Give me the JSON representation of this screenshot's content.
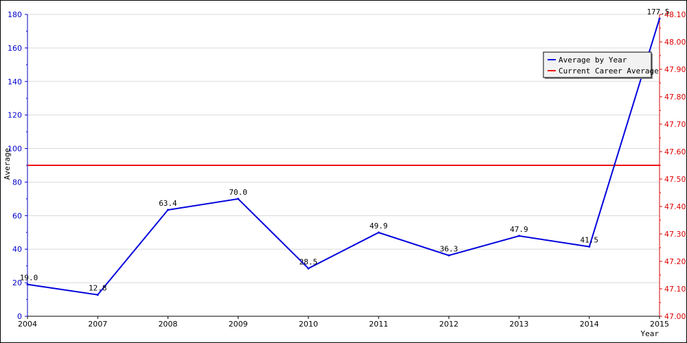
{
  "chart_data": {
    "type": "line",
    "xlabel": "Year",
    "ylabel": "Average",
    "categories": [
      "2004",
      "2007",
      "2008",
      "2009",
      "2010",
      "2011",
      "2012",
      "2013",
      "2014",
      "2015"
    ],
    "left_axis": {
      "ylim": [
        0,
        180
      ],
      "ticks": [
        0,
        20,
        40,
        60,
        80,
        100,
        120,
        140,
        160,
        180
      ],
      "color": "#0000cc"
    },
    "right_axis": {
      "ylim": [
        47.0,
        48.1
      ],
      "ticks": [
        "47.00",
        "47.10",
        "47.20",
        "47.30",
        "47.40",
        "47.50",
        "47.60",
        "47.70",
        "47.80",
        "47.90",
        "48.00",
        "48.10"
      ],
      "color": "#dd0000"
    },
    "series": [
      {
        "name": "Average by Year",
        "color": "#0000dd",
        "axis": "left",
        "values": [
          19.0,
          12.8,
          63.4,
          70.0,
          28.5,
          49.9,
          36.3,
          47.9,
          41.5,
          177.5
        ],
        "labels": [
          "19.0",
          "12.8",
          "63.4",
          "70.0",
          "28.5",
          "49.9",
          "36.3",
          "47.9",
          "41.5",
          "177.5"
        ]
      },
      {
        "name": "Current Career Average",
        "color": "#ee1111",
        "axis": "right",
        "value": 47.55
      }
    ],
    "grid": true,
    "legend_position": "top-right"
  }
}
